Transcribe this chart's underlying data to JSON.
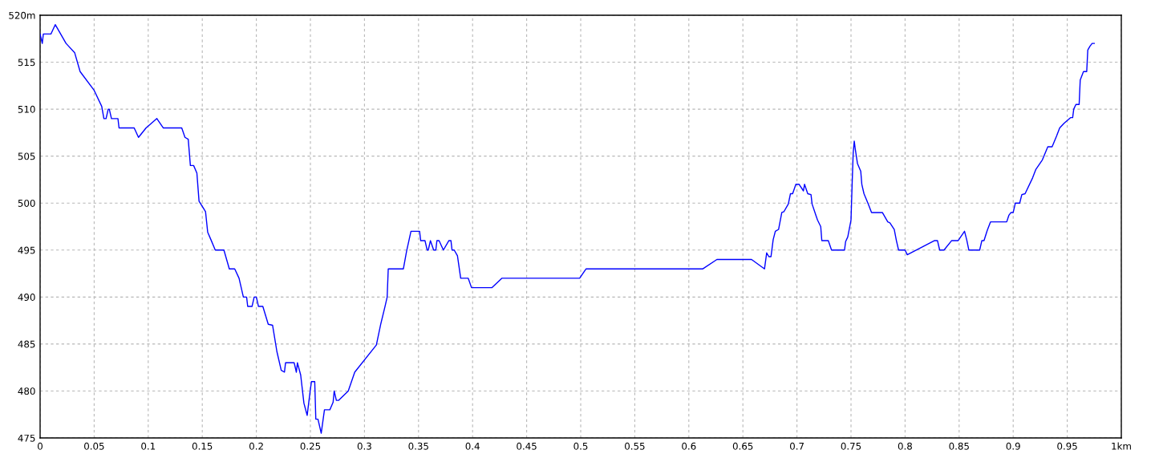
{
  "chart_data": {
    "type": "line",
    "x": [
      0.0,
      0.002,
      0.003,
      0.01,
      0.014,
      0.024,
      0.032,
      0.037,
      0.05,
      0.057,
      0.059,
      0.061,
      0.063,
      0.064,
      0.066,
      0.072,
      0.073,
      0.087,
      0.091,
      0.098,
      0.108,
      0.114,
      0.131,
      0.134,
      0.137,
      0.139,
      0.142,
      0.145,
      0.147,
      0.153,
      0.155,
      0.158,
      0.162,
      0.17,
      0.175,
      0.18,
      0.184,
      0.188,
      0.191,
      0.192,
      0.196,
      0.198,
      0.2,
      0.202,
      0.206,
      0.211,
      0.215,
      0.219,
      0.223,
      0.226,
      0.227,
      0.235,
      0.237,
      0.238,
      0.241,
      0.244,
      0.247,
      0.25,
      0.251,
      0.254,
      0.255,
      0.257,
      0.26,
      0.263,
      0.268,
      0.271,
      0.272,
      0.274,
      0.276,
      0.285,
      0.288,
      0.291,
      0.311,
      0.315,
      0.319,
      0.321,
      0.322,
      0.336,
      0.339,
      0.343,
      0.351,
      0.352,
      0.356,
      0.358,
      0.359,
      0.361,
      0.364,
      0.366,
      0.367,
      0.369,
      0.373,
      0.378,
      0.38,
      0.381,
      0.383,
      0.386,
      0.389,
      0.396,
      0.399,
      0.418,
      0.427,
      0.499,
      0.505,
      0.613,
      0.626,
      0.658,
      0.67,
      0.672,
      0.674,
      0.676,
      0.678,
      0.68,
      0.683,
      0.686,
      0.688,
      0.692,
      0.694,
      0.696,
      0.699,
      0.702,
      0.706,
      0.707,
      0.71,
      0.713,
      0.714,
      0.719,
      0.722,
      0.723,
      0.729,
      0.732,
      0.744,
      0.745,
      0.747,
      0.75,
      0.751,
      0.752,
      0.753,
      0.754,
      0.756,
      0.759,
      0.76,
      0.762,
      0.766,
      0.769,
      0.779,
      0.784,
      0.786,
      0.79,
      0.792,
      0.794,
      0.8,
      0.802,
      0.827,
      0.83,
      0.832,
      0.836,
      0.843,
      0.849,
      0.855,
      0.857,
      0.859,
      0.869,
      0.871,
      0.873,
      0.876,
      0.879,
      0.894,
      0.896,
      0.898,
      0.9,
      0.902,
      0.906,
      0.908,
      0.911,
      0.918,
      0.921,
      0.927,
      0.932,
      0.936,
      0.94,
      0.943,
      0.947,
      0.95,
      0.953,
      0.955,
      0.956,
      0.958,
      0.961,
      0.962,
      0.965,
      0.968,
      0.969,
      0.971,
      0.973,
      0.975
    ],
    "series": [
      {
        "color": "#0000ff",
        "values": [
          518,
          517,
          518,
          518,
          519,
          517,
          516,
          514,
          512,
          510.3,
          509,
          509,
          510,
          510,
          509,
          509,
          508,
          508,
          507,
          508,
          509,
          508,
          508,
          507,
          506.8,
          504,
          504,
          503.2,
          500.2,
          499.1,
          496.9,
          496.1,
          495,
          495,
          493,
          493,
          492,
          490,
          490,
          489,
          489,
          490,
          490,
          489,
          489,
          487.1,
          487,
          484.2,
          482.2,
          482,
          483,
          483,
          482,
          483,
          481.7,
          478.7,
          477.4,
          480.2,
          481,
          481,
          477,
          477,
          475.5,
          478,
          478,
          478.8,
          480,
          479,
          479,
          480,
          481,
          482,
          484.9,
          487.1,
          489,
          490,
          493,
          493,
          494.9,
          497,
          497,
          496,
          496,
          495,
          495,
          496,
          495,
          495,
          496,
          496,
          495,
          496,
          496,
          495,
          495,
          494.4,
          492,
          492,
          491,
          491,
          492,
          492,
          493,
          493,
          494,
          494,
          493,
          494.7,
          494.3,
          494.3,
          496.1,
          497,
          497.2,
          499,
          499.1,
          499.9,
          501,
          501,
          502,
          502,
          501.3,
          502,
          501,
          500.9,
          499.9,
          498.2,
          497.5,
          496,
          496,
          495,
          495,
          495.9,
          496.4,
          498.2,
          501.9,
          505.3,
          506.6,
          505.7,
          504.2,
          503.4,
          502,
          501,
          499.9,
          499,
          499,
          498,
          497.9,
          497.2,
          496,
          495,
          495,
          494.5,
          496,
          496,
          495,
          495,
          496,
          496,
          497,
          496.1,
          495,
          495,
          496,
          496,
          497.1,
          498,
          498,
          498.7,
          499,
          499,
          500,
          500,
          500.9,
          501,
          502.7,
          503.6,
          504.6,
          506,
          506,
          507.1,
          508,
          508.5,
          508.8,
          509.1,
          509.1,
          510,
          510.5,
          510.5,
          513.1,
          514,
          514,
          516.3,
          516.7,
          517,
          517
        ]
      }
    ],
    "xlim": [
      0,
      1
    ],
    "ylim": [
      475,
      520
    ],
    "xticks": [
      0,
      0.05,
      0.1,
      0.15,
      0.2,
      0.25,
      0.3,
      0.35,
      0.4,
      0.45,
      0.5,
      0.55,
      0.6,
      0.65,
      0.7,
      0.75,
      0.8,
      0.85,
      0.9,
      0.95,
      {
        "value": 1,
        "label": "1km"
      }
    ],
    "yticks": [
      475,
      480,
      485,
      490,
      495,
      500,
      505,
      510,
      515,
      {
        "value": 520,
        "label": "520m"
      }
    ],
    "grid": true,
    "line_style": "solid",
    "marker": "none"
  }
}
